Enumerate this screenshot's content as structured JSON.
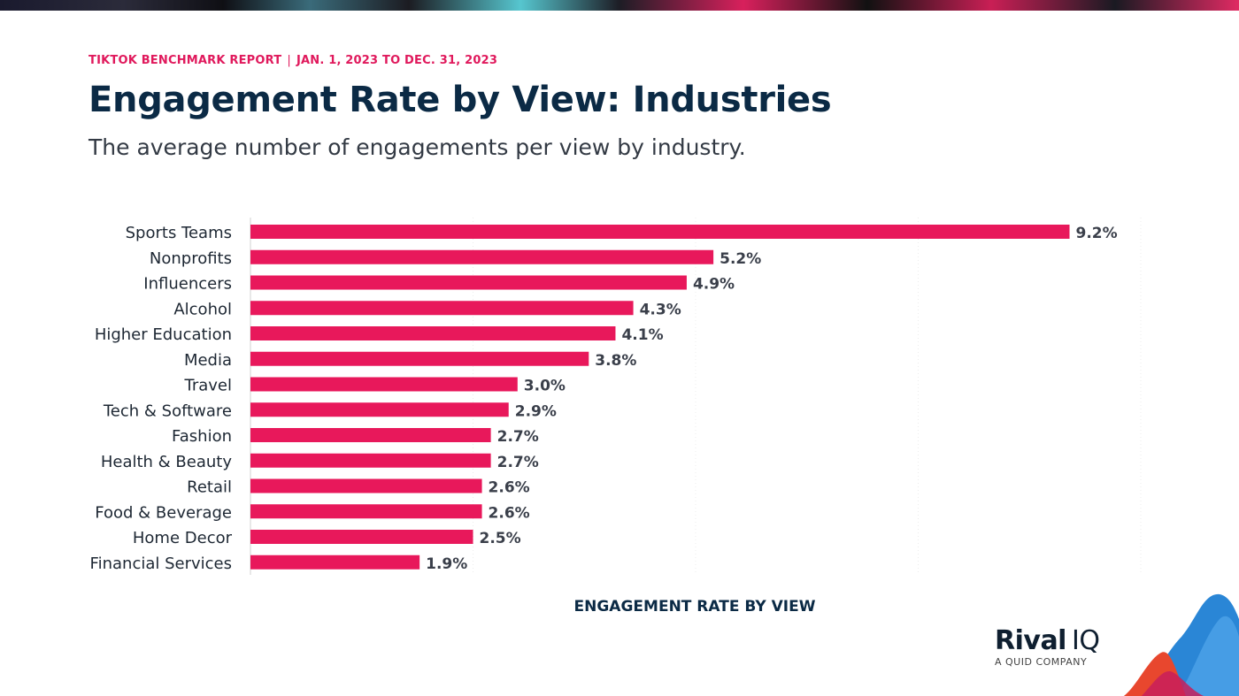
{
  "header": {
    "report_name": "TIKTOK BENCHMARK REPORT",
    "separator": "|",
    "date_range": "JAN. 1, 2023 TO DEC. 31, 2023"
  },
  "brand": {
    "name_main": "Rival",
    "name_suffix": "IQ",
    "tagline": "A QUID COMPANY"
  },
  "colors": {
    "bar": "#e8185b",
    "title": "#0b2a45",
    "accent": "#e0195c"
  },
  "chart_data": {
    "type": "bar",
    "orientation": "horizontal",
    "title": "Engagement Rate by View: Industries",
    "subtitle": "The average number of engagements per view by industry.",
    "xlabel": "ENGAGEMENT RATE BY VIEW",
    "ylabel": "",
    "categories": [
      "Sports Teams",
      "Nonprofits",
      "Influencers",
      "Alcohol",
      "Higher Education",
      "Media",
      "Travel",
      "Tech & Software",
      "Fashion",
      "Health & Beauty",
      "Retail",
      "Food & Beverage",
      "Home Decor",
      "Financial Services"
    ],
    "values": [
      9.2,
      5.2,
      4.9,
      4.3,
      4.1,
      3.8,
      3.0,
      2.9,
      2.7,
      2.7,
      2.6,
      2.6,
      2.5,
      1.9
    ],
    "value_labels": [
      "9.2%",
      "5.2%",
      "4.9%",
      "4.3%",
      "4.1%",
      "3.8%",
      "3.0%",
      "2.9%",
      "2.7%",
      "2.7%",
      "2.6%",
      "2.6%",
      "2.5%",
      "1.9%"
    ],
    "xlim": [
      0,
      10
    ],
    "grid": true,
    "legend": "none"
  }
}
